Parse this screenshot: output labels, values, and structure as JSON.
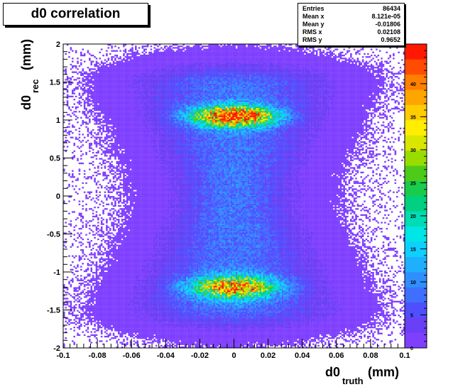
{
  "chart_data": {
    "type": "heatmap",
    "title": "d0 correlation",
    "xlabel": {
      "main": "d0",
      "sub": "truth",
      "unit": "(mm)"
    },
    "ylabel": {
      "main": "d0",
      "sub": "rec",
      "unit": "(mm)"
    },
    "xlim": [
      -0.1,
      0.1
    ],
    "ylim": [
      -2,
      2
    ],
    "x_ticks": [
      "-0.1",
      "-0.08",
      "-0.06",
      "-0.04",
      "-0.02",
      "0",
      "0.02",
      "0.04",
      "0.06",
      "0.08",
      "0.1"
    ],
    "x_tick_values": [
      -0.1,
      -0.08,
      -0.06,
      -0.04,
      -0.02,
      0,
      0.02,
      0.04,
      0.06,
      0.08,
      0.1
    ],
    "y_ticks": [
      "-2",
      "-1.5",
      "-1",
      "-0.5",
      "0",
      "0.5",
      "1",
      "1.5",
      "2"
    ],
    "y_tick_values": [
      -2,
      -1.5,
      -1,
      -0.5,
      0,
      0.5,
      1,
      1.5,
      2
    ],
    "z_range": [
      0,
      46
    ],
    "z_ticks": [
      "0",
      "5",
      "10",
      "15",
      "20",
      "25",
      "30",
      "35",
      "40"
    ],
    "z_tick_values": [
      0,
      5,
      10,
      15,
      20,
      25,
      30,
      35,
      40
    ],
    "colormap": [
      "#7f3fff",
      "#6a3ff5",
      "#4f4fff",
      "#3f6fff",
      "#2f8fff",
      "#1fafff",
      "#0fcfff",
      "#00e5e5",
      "#00dcb4",
      "#00d080",
      "#19cc4c",
      "#4ccc19",
      "#99dd00",
      "#d8e600",
      "#ffee00",
      "#ffcc00",
      "#ffa500",
      "#ff7f00",
      "#ff4c00",
      "#ff1900"
    ],
    "bins": {
      "nx": 200,
      "ny": 200
    },
    "distribution": {
      "core_sigma_x": 0.021,
      "hotspots": [
        {
          "x": 0.0,
          "y": 1.05,
          "peak": 43,
          "sigma_x": 0.016,
          "sigma_y": 0.09
        },
        {
          "x": 0.0,
          "y": -1.2,
          "peak": 32,
          "sigma_x": 0.017,
          "sigma_y": 0.1
        }
      ],
      "band_level": 7
    }
  },
  "stats": [
    {
      "label": "Entries",
      "value": "86434"
    },
    {
      "label": "Mean x",
      "value": "8.121e-05"
    },
    {
      "label": "Mean y",
      "value": "-0.01806"
    },
    {
      "label": "RMS x",
      "value": "0.02108"
    },
    {
      "label": "RMS y",
      "value": "0.9652"
    }
  ]
}
